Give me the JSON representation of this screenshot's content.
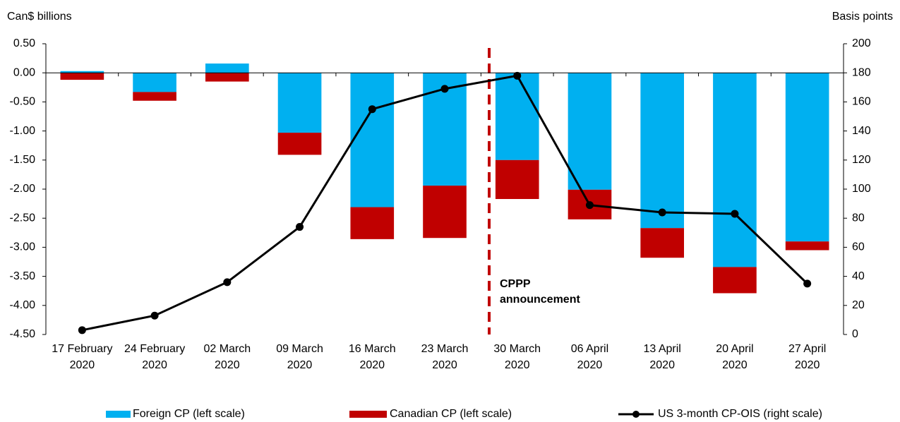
{
  "chart_data": {
    "type": "bar+line",
    "y_label": "Can$ billions",
    "y2_label": "Basis points",
    "categories": [
      "17 February 2020",
      "24 February 2020",
      "02 March 2020",
      "09 March 2020",
      "16 March 2020",
      "23 March 2020",
      "30 March 2020",
      "06 April 2020",
      "13 April 2020",
      "20 April 2020",
      "27 April 2020"
    ],
    "series": [
      {
        "name": "Foreign CP (left scale)",
        "type": "bar",
        "color": "#00b0f0",
        "values": [
          0.03,
          -0.33,
          0.16,
          -1.03,
          -2.31,
          -1.94,
          -1.5,
          -2.01,
          -2.67,
          -3.34,
          -2.9
        ]
      },
      {
        "name": "Canadian CP (left scale)",
        "type": "bar",
        "color": "#c00000",
        "values": [
          -0.12,
          -0.15,
          -0.15,
          -0.38,
          -0.55,
          -0.9,
          -0.67,
          -0.51,
          -0.51,
          -0.45,
          -0.15
        ]
      },
      {
        "name": "US 3-month CP-OIS (right scale)",
        "type": "line",
        "axis": "y2",
        "color": "#000000",
        "values": [
          3,
          13,
          36,
          74,
          155,
          169,
          178,
          89,
          84,
          83,
          35
        ]
      }
    ],
    "annotation": "CPPP announcement",
    "ylim": [
      -4.5,
      0.5
    ],
    "yticks": [
      {
        "value": 0.5,
        "label": "0.50"
      },
      {
        "value": 0,
        "label": "0.00"
      },
      {
        "value": -0.5,
        "label": "-0.50"
      },
      {
        "value": -1,
        "label": "-1.00"
      },
      {
        "value": -1.5,
        "label": "-1.50"
      },
      {
        "value": -2,
        "label": "-2.00"
      },
      {
        "value": -2.5,
        "label": "-2.50"
      },
      {
        "value": -3,
        "label": "-3.00"
      },
      {
        "value": -3.5,
        "label": "-3.50"
      },
      {
        "value": -4,
        "label": "-4.00"
      },
      {
        "value": -4.5,
        "label": "-4.50"
      }
    ],
    "y2lim": [
      0,
      200
    ],
    "y2ticks": [
      0,
      20,
      40,
      60,
      80,
      100,
      120,
      140,
      160,
      180,
      200
    ]
  }
}
